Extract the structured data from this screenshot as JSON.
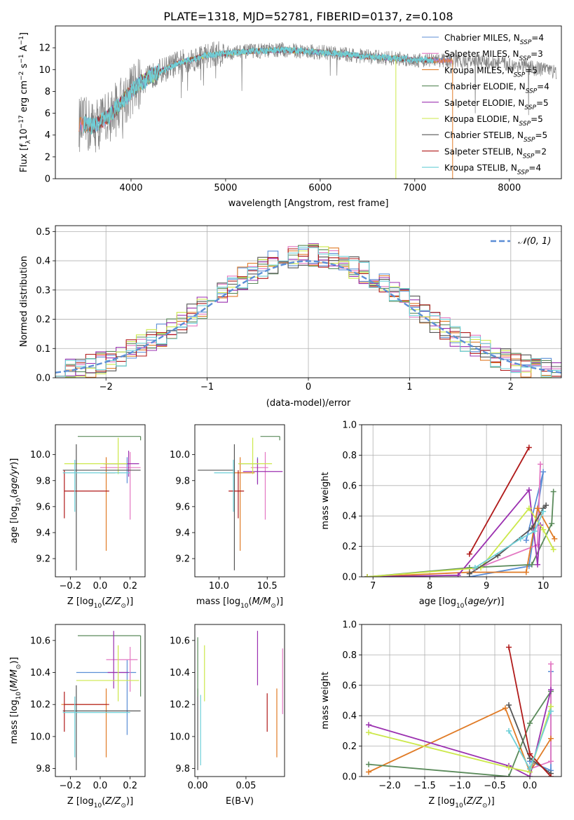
{
  "figure_title": "PLATE=1318, MJD=52781, FIBERID=0137, z=0.108",
  "colors": {
    "chabrier_miles": "#5b8ed6",
    "salpeter_miles": "#e377c2",
    "kroupa_miles": "#e07b26",
    "chabrier_elodie": "#5a8a5a",
    "salpeter_elodie": "#9b30b0",
    "kroupa_elodie": "#cce84a",
    "chabrier_stelib": "#555555",
    "salpeter_stelib": "#b01a1a",
    "kroupa_stelib": "#6fd0d8",
    "data": "#808080",
    "normal": "#5b8ed6"
  },
  "chart_data": [
    {
      "id": "spectrum",
      "type": "line",
      "xlabel": "wavelength [Angstrom, rest frame]",
      "ylabel": "Flux [f_λ 10^-17 erg cm^-2 s^-1 A^-1]",
      "xlim": [
        3200,
        8550
      ],
      "ylim": [
        0,
        14
      ],
      "xticks": [
        4000,
        5000,
        6000,
        7000,
        8000
      ],
      "yticks": [
        0,
        2,
        4,
        6,
        8,
        10,
        12
      ],
      "legend_position": "right",
      "series": [
        {
          "name": "Chabrier MILES, N_SSP=4"
        },
        {
          "name": "Salpeter MILES, N_SSP=3"
        },
        {
          "name": "Kroupa MILES, N_SSP=5"
        },
        {
          "name": "Chabrier ELODIE, N_SSP=4"
        },
        {
          "name": "Salpeter ELODIE, N_SSP=5"
        },
        {
          "name": "Kroupa ELODIE, N_SSP=5"
        },
        {
          "name": "Chabrier STELIB, N_SSP=5"
        },
        {
          "name": "Salpeter STELIB, N_SSP=2"
        },
        {
          "name": "Kroupa STELIB, N_SSP=4"
        }
      ],
      "continuum": {
        "x": [
          3450,
          3600,
          3700,
          3800,
          3900,
          4000,
          4100,
          4300,
          4500,
          4800,
          5000,
          5300,
          5600,
          6000,
          6500,
          7000,
          7500,
          7900,
          8200,
          8500
        ],
        "y": [
          5.0,
          4.8,
          5.3,
          6.0,
          7.0,
          8.0,
          8.8,
          9.8,
          10.6,
          11.3,
          11.5,
          11.7,
          11.8,
          11.6,
          11.2,
          10.9,
          10.8,
          10.6,
          10.2,
          9.8
        ]
      }
    },
    {
      "id": "residuals",
      "type": "histogram",
      "xlabel": "(data-model)/error",
      "ylabel": "Normed distribution",
      "xlim": [
        -2.5,
        2.5
      ],
      "ylim": [
        0,
        0.52
      ],
      "xticks": [
        -2,
        -1,
        0,
        1,
        2
      ],
      "yticks": [
        0.0,
        0.1,
        0.2,
        0.3,
        0.4,
        0.5
      ],
      "legend": [
        {
          "name": "N(0,1)"
        }
      ],
      "legend_position": "top-right",
      "bin_width": 0.1
    },
    {
      "id": "age_vs_Z",
      "type": "errorbar",
      "xlabel": "Z [log10(Z/Z☉)]",
      "ylabel": "age  [log10(age/yr)]",
      "xlim": [
        -0.3,
        0.3
      ],
      "ylim": [
        9.06,
        10.23
      ],
      "xticks": [
        -0.2,
        0.0,
        0.2
      ],
      "yticks": [
        9.2,
        9.4,
        9.6,
        9.8,
        10.0
      ],
      "points": [
        {
          "model": "chabrier_miles",
          "x": 0.18,
          "xerr": [
            0.16,
            0.02
          ],
          "y": 9.93,
          "yerr": [
            0.15,
            0.05
          ]
        },
        {
          "model": "salpeter_miles",
          "x": 0.2,
          "xerr": [
            0.2,
            0.07
          ],
          "y": 9.9,
          "yerr": [
            0.4,
            0.12
          ]
        },
        {
          "model": "kroupa_miles",
          "x": 0.04,
          "xerr": [
            0.04,
            0.06
          ],
          "y": 9.86,
          "yerr": [
            0.6,
            0.12
          ]
        },
        {
          "model": "chabrier_elodie",
          "x": 0.27,
          "xerr": [
            0.42,
            0.0
          ],
          "y": 10.14,
          "yerr": [
            0.03,
            0.0
          ]
        },
        {
          "model": "salpeter_elodie",
          "x": 0.19,
          "xerr": [
            0.16,
            0.07
          ],
          "y": 9.93,
          "yerr": [
            0.1,
            0.1
          ]
        },
        {
          "model": "kroupa_elodie",
          "x": 0.12,
          "xerr": [
            0.36,
            0.06
          ],
          "y": 9.93,
          "yerr": [
            0.08,
            0.2
          ]
        },
        {
          "model": "chabrier_stelib",
          "x": -0.16,
          "xerr": [
            0.09,
            0.43
          ],
          "y": 9.88,
          "yerr": [
            0.77,
            0.2
          ]
        },
        {
          "model": "salpeter_stelib",
          "x": -0.24,
          "xerr": [
            0.0,
            0.3
          ],
          "y": 9.72,
          "yerr": [
            0.21,
            0.16
          ]
        },
        {
          "model": "kroupa_stelib",
          "x": -0.17,
          "xerr": [
            0.08,
            0.37
          ],
          "y": 9.86,
          "yerr": [
            0.3,
            0.1
          ]
        }
      ]
    },
    {
      "id": "age_vs_mass",
      "type": "errorbar",
      "xlabel": "mass [log10(M/M☉)]",
      "ylabel": "",
      "xlim": [
        9.75,
        10.68
      ],
      "ylim": [
        9.06,
        10.23
      ],
      "xticks": [
        10.0,
        10.5
      ],
      "yticks": [
        9.2,
        9.4,
        9.6,
        9.8,
        10.0
      ],
      "points": [
        {
          "model": "chabrier_miles",
          "x": 10.4,
          "xerr": [
            0.2,
            0.02
          ],
          "y": 9.93,
          "yerr": [
            0.15,
            0.05
          ]
        },
        {
          "model": "salpeter_miles",
          "x": 10.48,
          "xerr": [
            0.15,
            0.03
          ],
          "y": 9.9,
          "yerr": [
            0.4,
            0.12
          ]
        },
        {
          "model": "kroupa_miles",
          "x": 10.22,
          "xerr": [
            0.07,
            0.15
          ],
          "y": 9.86,
          "yerr": [
            0.6,
            0.12
          ]
        },
        {
          "model": "chabrier_elodie",
          "x": 10.63,
          "xerr": [
            0.2,
            0.0
          ],
          "y": 10.14,
          "yerr": [
            0.03,
            0.0
          ]
        },
        {
          "model": "salpeter_elodie",
          "x": 10.4,
          "xerr": [
            0.15,
            0.26
          ],
          "y": 9.87,
          "yerr": [
            0.1,
            0.1
          ]
        },
        {
          "model": "kroupa_elodie",
          "x": 10.35,
          "xerr": [
            0.15,
            0.2
          ],
          "y": 9.93,
          "yerr": [
            0.08,
            0.2
          ]
        },
        {
          "model": "chabrier_stelib",
          "x": 10.16,
          "xerr": [
            0.38,
            0.0
          ],
          "y": 9.88,
          "yerr": [
            0.77,
            0.2
          ]
        },
        {
          "model": "salpeter_stelib",
          "x": 10.2,
          "xerr": [
            0.1,
            0.06
          ],
          "y": 9.72,
          "yerr": [
            0.21,
            0.16
          ]
        },
        {
          "model": "kroupa_stelib",
          "x": 10.15,
          "xerr": [
            0.2,
            0.0
          ],
          "y": 9.86,
          "yerr": [
            0.3,
            0.1
          ]
        }
      ]
    },
    {
      "id": "weight_vs_age",
      "type": "line",
      "xlabel": "age  [log10(age/yr)]",
      "ylabel": "mass weight",
      "xlim": [
        6.8,
        10.32
      ],
      "ylim": [
        0,
        1
      ],
      "xticks": [
        7,
        8,
        9,
        10
      ],
      "yticks": [
        0.0,
        0.2,
        0.4,
        0.6,
        0.8,
        1.0
      ],
      "series": [
        {
          "model": "chabrier_miles",
          "x": [
            8.7,
            9.75,
            10.0,
            9.7
          ],
          "y": [
            0.0,
            0.07,
            0.69,
            0.24
          ]
        },
        {
          "model": "salpeter_miles",
          "x": [
            8.8,
            9.9,
            9.95
          ],
          "y": [
            0.05,
            0.21,
            0.74
          ]
        },
        {
          "model": "kroupa_miles",
          "x": [
            6.9,
            8.7,
            9.7,
            9.9,
            10.2
          ],
          "y": [
            0.0,
            0.03,
            0.03,
            0.45,
            0.25
          ]
        },
        {
          "model": "chabrier_elodie",
          "x": [
            6.9,
            8.7,
            9.8,
            10.15,
            10.18
          ],
          "y": [
            0.0,
            0.06,
            0.08,
            0.35,
            0.56
          ]
        },
        {
          "model": "salpeter_elodie",
          "x": [
            6.9,
            8.5,
            9.75,
            9.9,
            9.95
          ],
          "y": [
            0.0,
            0.01,
            0.57,
            0.08,
            0.34
          ]
        },
        {
          "model": "kroupa_elodie",
          "x": [
            6.9,
            8.9,
            9.75,
            10.0,
            10.18
          ],
          "y": [
            0.0,
            0.06,
            0.45,
            0.31,
            0.18
          ]
        },
        {
          "model": "chabrier_stelib",
          "x": [
            8.7,
            9.2,
            9.8,
            10.0,
            10.05
          ],
          "y": [
            0.02,
            0.14,
            0.32,
            0.45,
            0.47
          ]
        },
        {
          "model": "salpeter_stelib",
          "x": [
            8.7,
            9.75
          ],
          "y": [
            0.15,
            0.85
          ]
        },
        {
          "model": "kroupa_stelib",
          "x": [
            8.8,
            9.6,
            9.85,
            10.0
          ],
          "y": [
            0.06,
            0.25,
            0.3,
            0.43
          ]
        }
      ]
    },
    {
      "id": "mass_vs_Z",
      "type": "errorbar",
      "xlabel": "Z [log10(Z/Z☉)]",
      "ylabel": "mass [log10(M/M☉)]",
      "xlim": [
        -0.3,
        0.3
      ],
      "ylim": [
        9.75,
        10.7
      ],
      "xticks": [
        -0.2,
        0.0,
        0.2
      ],
      "yticks": [
        9.8,
        10.0,
        10.2,
        10.4,
        10.6
      ],
      "points": [
        {
          "model": "chabrier_miles",
          "x": 0.18,
          "xerr": [
            0.34,
            0.06
          ],
          "y": 10.4,
          "yerr": [
            0.39,
            0.08
          ]
        },
        {
          "model": "salpeter_miles",
          "x": 0.2,
          "xerr": [
            0.16,
            0.05
          ],
          "y": 10.48,
          "yerr": [
            0.2,
            0.08
          ]
        },
        {
          "model": "kroupa_miles",
          "x": 0.04,
          "xerr": [
            0.3,
            0.0
          ],
          "y": 10.2,
          "yerr": [
            0.33,
            0.1
          ]
        },
        {
          "model": "chabrier_elodie",
          "x": 0.27,
          "xerr": [
            0.42,
            0.0
          ],
          "y": 10.63,
          "yerr": [
            0.38,
            0.0
          ]
        },
        {
          "model": "salpeter_elodie",
          "x": 0.09,
          "xerr": [
            0.04,
            0.1
          ],
          "y": 10.4,
          "yerr": [
            0.1,
            0.26
          ]
        },
        {
          "model": "kroupa_elodie",
          "x": 0.12,
          "xerr": [
            0.28,
            0.14
          ],
          "y": 10.35,
          "yerr": [
            0.13,
            0.22
          ]
        },
        {
          "model": "chabrier_stelib",
          "x": -0.16,
          "xerr": [
            0.09,
            0.43
          ],
          "y": 10.16,
          "yerr": [
            0.37,
            0.16
          ]
        },
        {
          "model": "salpeter_stelib",
          "x": -0.24,
          "xerr": [
            0.0,
            0.3
          ],
          "y": 10.2,
          "yerr": [
            0.17,
            0.08
          ]
        },
        {
          "model": "kroupa_stelib",
          "x": -0.17,
          "xerr": [
            0.08,
            0.37
          ],
          "y": 10.15,
          "yerr": [
            0.28,
            0.1
          ]
        }
      ]
    },
    {
      "id": "mass_vs_EBV",
      "type": "errorbar",
      "xlabel": "E(B-V)",
      "ylabel": "",
      "xlim": [
        -0.003,
        0.09
      ],
      "ylim": [
        9.75,
        10.7
      ],
      "xticks": [
        0.0,
        0.05
      ],
      "yticks": [
        9.8,
        10.0,
        10.2,
        10.4,
        10.6
      ],
      "points": [
        {
          "model": "chabrier_stelib",
          "x": 0.0,
          "y": 10.2,
          "yerr": [
            0.41,
            0.1
          ]
        },
        {
          "model": "chabrier_elodie",
          "x": 0.0,
          "y": 10.4,
          "yerr": [
            0.15,
            0.22
          ]
        },
        {
          "model": "kroupa_stelib",
          "x": 0.003,
          "y": 10.1,
          "yerr": [
            0.28,
            0.16
          ]
        },
        {
          "model": "kroupa_elodie",
          "x": 0.007,
          "y": 10.35,
          "yerr": [
            0.13,
            0.22
          ]
        },
        {
          "model": "salpeter_elodie",
          "x": 0.062,
          "y": 10.49,
          "yerr": [
            0.17,
            0.17
          ]
        },
        {
          "model": "salpeter_stelib",
          "x": 0.072,
          "y": 10.15,
          "yerr": [
            0.12,
            0.12
          ]
        },
        {
          "model": "kroupa_miles",
          "x": 0.082,
          "y": 10.1,
          "yerr": [
            0.23,
            0.2
          ]
        },
        {
          "model": "salpeter_miles",
          "x": 0.088,
          "y": 10.35,
          "yerr": [
            0.21,
            0.2
          ]
        }
      ]
    },
    {
      "id": "weight_vs_Z",
      "type": "line",
      "xlabel": "Z [log10(Z/Z☉)]",
      "ylabel": "mass weight",
      "xlim": [
        -2.4,
        0.45
      ],
      "ylim": [
        0,
        1
      ],
      "xticks": [
        -2.0,
        -1.5,
        -1.0,
        -0.5,
        0.0
      ],
      "yticks": [
        0.0,
        0.2,
        0.4,
        0.6,
        0.8,
        1.0
      ],
      "series": [
        {
          "model": "chabrier_miles",
          "x": [
            0.0,
            0.3,
            0.3
          ],
          "y": [
            0.1,
            0.04,
            0.69
          ]
        },
        {
          "model": "salpeter_miles",
          "x": [
            0.0,
            0.3,
            0.3
          ],
          "y": [
            0.05,
            0.1,
            0.74
          ]
        },
        {
          "model": "kroupa_miles",
          "x": [
            -2.3,
            -0.35,
            0.0,
            0.3
          ],
          "y": [
            0.03,
            0.45,
            0.03,
            0.25
          ]
        },
        {
          "model": "chabrier_elodie",
          "x": [
            -2.3,
            -0.3,
            0.0,
            0.3
          ],
          "y": [
            0.08,
            0.0,
            0.35,
            0.56
          ]
        },
        {
          "model": "salpeter_elodie",
          "x": [
            -2.3,
            -0.3,
            0.0,
            0.3
          ],
          "y": [
            0.34,
            0.07,
            0.0,
            0.57
          ]
        },
        {
          "model": "kroupa_elodie",
          "x": [
            -2.3,
            -0.3,
            0.0,
            0.3
          ],
          "y": [
            0.29,
            0.06,
            0.03,
            0.46
          ]
        },
        {
          "model": "chabrier_stelib",
          "x": [
            -0.3,
            0.0,
            0.3
          ],
          "y": [
            0.47,
            0.12,
            0.02
          ]
        },
        {
          "model": "salpeter_stelib",
          "x": [
            -0.3,
            0.0,
            0.3
          ],
          "y": [
            0.85,
            0.15,
            0.0
          ]
        },
        {
          "model": "kroupa_stelib",
          "x": [
            -0.3,
            0.0,
            0.3
          ],
          "y": [
            0.3,
            0.05,
            0.43
          ]
        }
      ]
    }
  ]
}
